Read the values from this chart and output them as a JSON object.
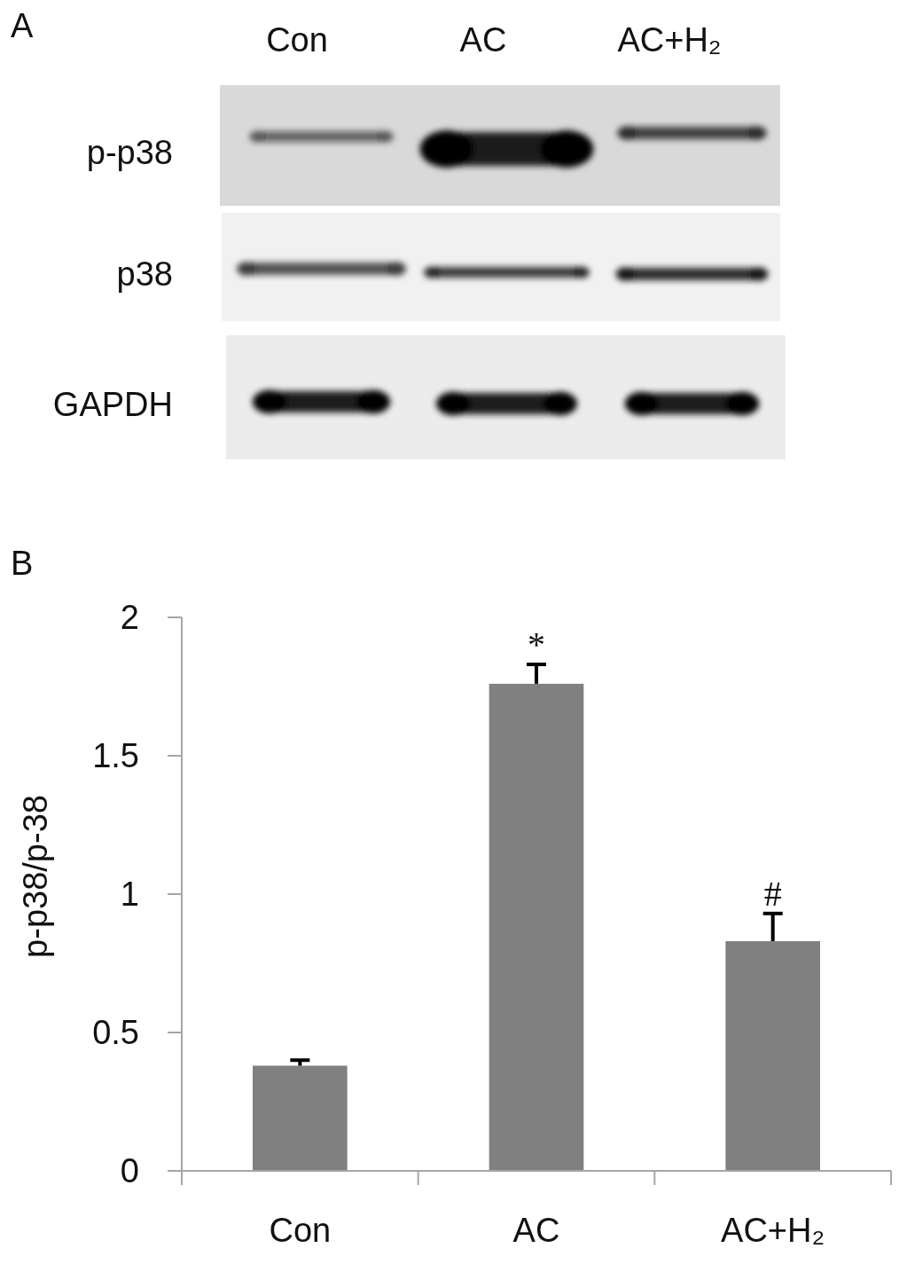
{
  "chart_data": [
    {
      "type": "other",
      "title": "A",
      "categories": [
        "Con",
        "AC",
        "AC+H₂"
      ],
      "y_categories": [
        "p-p38",
        "p38",
        "GAPDH"
      ]
    },
    {
      "type": "bar",
      "title": "B",
      "ylabel": "p-p38/p-38",
      "categories": [
        "Con",
        "AC",
        "AC+H₂"
      ],
      "values": [
        0.38,
        1.76,
        0.83
      ],
      "errors": [
        [
          0.38,
          0.4
        ],
        [
          1.76,
          1.83
        ],
        [
          0.83,
          0.93
        ]
      ],
      "color": "#808080",
      "ylim": [
        0,
        2
      ],
      "yticks": [
        0,
        0.5,
        1,
        1.5,
        2
      ],
      "annotations": [
        {
          "text": "*",
          "x": "AC",
          "y": 1.83
        },
        {
          "text": "#",
          "x": "AC+H₂",
          "y": 0.93
        }
      ]
    }
  ]
}
